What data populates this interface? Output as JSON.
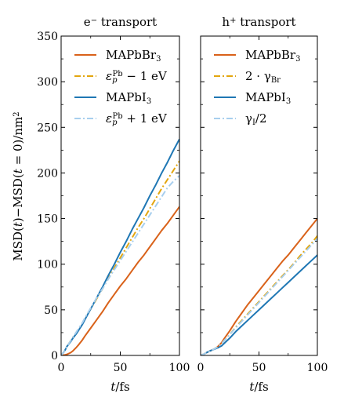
{
  "colors": {
    "br": "#d9621a",
    "br_alt": "#e3a60f",
    "i": "#1f77b4",
    "i_alt": "#a8cfee",
    "axis": "#000000"
  },
  "chart_data": [
    {
      "type": "line",
      "title": "e− transport",
      "title_main": "e",
      "title_sup": "−",
      "title_rest": " transport",
      "ylabel": "MSD(t)−MSD(t = 0)/nm²",
      "ylabel_sup": "2",
      "xlabel": "t/fs",
      "xlim": [
        0,
        100
      ],
      "ylim": [
        0,
        350
      ],
      "xticks": [
        "0",
        "50",
        "100"
      ],
      "yticks": [
        "0",
        "50",
        "100",
        "150",
        "200",
        "250",
        "300",
        "350"
      ],
      "legend_placement": "top-left",
      "series": [
        {
          "name": "MAPbBr3",
          "label_main": "MAPbBr",
          "label_sub": "3",
          "style": "solid",
          "color_key": "br",
          "x": [
            0,
            3,
            5,
            8,
            10,
            13,
            15,
            18,
            20,
            25,
            30,
            35,
            40,
            45,
            50,
            55,
            60,
            65,
            70,
            75,
            80,
            85,
            90,
            95,
            100
          ],
          "y": [
            0,
            0.5,
            1.2,
            3,
            5,
            9,
            12,
            17,
            21,
            30,
            39,
            48,
            58,
            67,
            76,
            84,
            93,
            102,
            110,
            119,
            128,
            137,
            145,
            154,
            163
          ]
        },
        {
          "name": "εp^Pb − 1 eV",
          "label_main": "ε",
          "label_sub": "p",
          "label_sup": "Pb",
          "label_rest": " − 1 eV",
          "style": "dashdot",
          "color_key": "br_alt",
          "x": [
            0,
            3,
            5,
            8,
            10,
            13,
            15,
            18,
            20,
            25,
            30,
            35,
            40,
            45,
            50,
            55,
            60,
            65,
            70,
            75,
            80,
            85,
            90,
            95,
            100
          ],
          "y": [
            0,
            5,
            10,
            16,
            20,
            25,
            29,
            35,
            40,
            51,
            62,
            73,
            85,
            96,
            107,
            118,
            129,
            140,
            150,
            161,
            172,
            183,
            193,
            203,
            213
          ]
        },
        {
          "name": "MAPbI3",
          "label_main": "MAPbI",
          "label_sub": "3",
          "style": "solid",
          "color_key": "i",
          "x": [
            0,
            3,
            5,
            8,
            10,
            13,
            15,
            18,
            20,
            25,
            30,
            35,
            40,
            45,
            50,
            55,
            60,
            65,
            70,
            75,
            80,
            85,
            90,
            95,
            100
          ],
          "y": [
            0,
            5,
            10,
            15,
            19,
            24,
            28,
            34,
            39,
            51,
            63,
            75,
            88,
            100,
            113,
            125,
            138,
            150,
            162,
            175,
            187,
            200,
            212,
            225,
            237
          ]
        },
        {
          "name": "εp^Pb + 1 eV",
          "label_main": "ε",
          "label_sub": "p",
          "label_sup": "Pb",
          "label_rest": " + 1 eV",
          "style": "dashdot",
          "color_key": "i_alt",
          "x": [
            0,
            3,
            5,
            8,
            10,
            13,
            15,
            18,
            20,
            25,
            30,
            35,
            40,
            45,
            50,
            55,
            60,
            65,
            70,
            75,
            80,
            85,
            90,
            95,
            100
          ],
          "y": [
            0,
            5,
            10,
            16,
            20,
            26,
            30,
            36,
            41,
            52,
            63,
            73,
            84,
            94,
            104,
            114,
            124,
            134,
            144,
            154,
            164,
            174,
            184,
            191,
            197
          ]
        }
      ]
    },
    {
      "type": "line",
      "title": "h+ transport",
      "title_main": "h",
      "title_sup": "+",
      "title_rest": " transport",
      "xlabel": "t/fs",
      "xlim": [
        0,
        100
      ],
      "ylim": [
        0,
        350
      ],
      "xticks": [
        "0",
        "50",
        "100"
      ],
      "legend_placement": "top-left",
      "series": [
        {
          "name": "MAPbBr3",
          "label_main": "MAPbBr",
          "label_sub": "3",
          "style": "solid",
          "color_key": "br",
          "x": [
            0,
            3,
            5,
            8,
            10,
            13,
            15,
            18,
            20,
            25,
            30,
            35,
            40,
            45,
            50,
            55,
            60,
            65,
            70,
            75,
            80,
            85,
            90,
            95,
            100
          ],
          "y": [
            0,
            1.5,
            3,
            5,
            6,
            8,
            10,
            14,
            18,
            27,
            37,
            46,
            55,
            63,
            71,
            79,
            87,
            95,
            103,
            110,
            118,
            126,
            134,
            142,
            150
          ]
        },
        {
          "name": "2 · γBr",
          "label_main": "2 · γ",
          "label_sub": "Br",
          "style": "dashdot",
          "color_key": "br_alt",
          "x": [
            0,
            3,
            5,
            8,
            10,
            13,
            15,
            18,
            20,
            25,
            30,
            35,
            40,
            45,
            50,
            55,
            60,
            65,
            70,
            75,
            80,
            85,
            90,
            95,
            100
          ],
          "y": [
            0,
            1.5,
            3,
            5,
            6,
            8,
            9.5,
            13,
            16,
            23,
            31,
            38,
            45,
            52,
            59,
            66,
            73,
            80,
            87,
            94,
            101,
            109,
            116,
            123,
            131
          ]
        },
        {
          "name": "MAPbI3",
          "label_main": "MAPbI",
          "label_sub": "3",
          "style": "solid",
          "color_key": "i",
          "x": [
            0,
            3,
            5,
            8,
            10,
            13,
            15,
            18,
            20,
            25,
            30,
            35,
            40,
            45,
            50,
            55,
            60,
            65,
            70,
            75,
            80,
            85,
            90,
            95,
            100
          ],
          "y": [
            0,
            1.5,
            3,
            5,
            6,
            7.5,
            8.5,
            10.5,
            13,
            19,
            26,
            32,
            38,
            44,
            50,
            56,
            62,
            68,
            74,
            80,
            86,
            92,
            98,
            104,
            110
          ]
        },
        {
          "name": "γI/2",
          "label_main": "γ",
          "label_sub": "I",
          "label_rest": "/2",
          "style": "dashdot",
          "color_key": "i_alt",
          "x": [
            0,
            3,
            5,
            8,
            10,
            13,
            15,
            18,
            20,
            25,
            30,
            35,
            40,
            45,
            50,
            55,
            60,
            65,
            70,
            75,
            80,
            85,
            90,
            95,
            100
          ],
          "y": [
            0,
            1.5,
            3,
            5,
            6,
            8,
            9.5,
            13,
            16,
            23,
            30,
            37,
            44,
            51,
            58,
            65,
            72,
            79,
            86,
            93,
            100,
            107,
            114,
            121,
            128
          ]
        }
      ]
    }
  ]
}
